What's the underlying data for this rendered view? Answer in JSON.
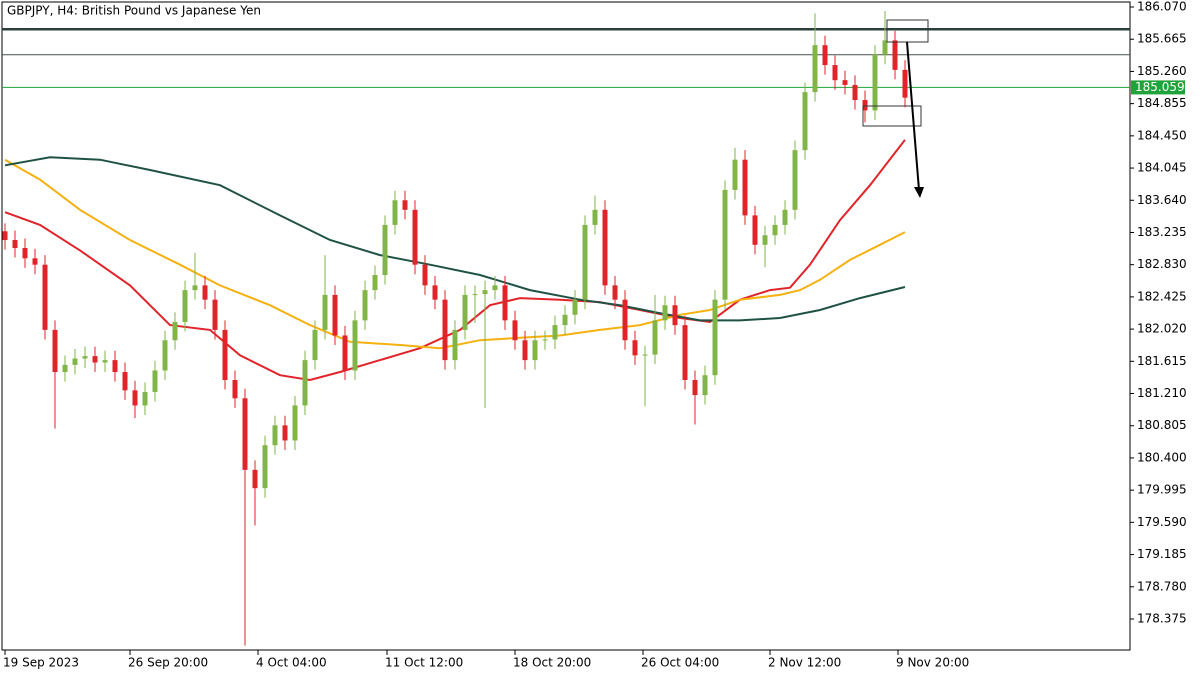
{
  "chart_data": {
    "type": "candlestick",
    "title": "GBPJPY, H4:  British Pound vs Japanese Yen",
    "up_color": "#82b548",
    "down_color": "#e0242a",
    "xlim": [
      -0.5,
      112.5
    ],
    "ylim": [
      177.985,
      186.133
    ],
    "xticks": [
      {
        "value": 0,
        "label": "19 Sep 2023"
      },
      {
        "value": 12.5,
        "label": "26 Sep 20:00"
      },
      {
        "value": 25.3,
        "label": "4 Oct 04:00"
      },
      {
        "value": 38.2,
        "label": "11 Oct 12:00"
      },
      {
        "value": 51,
        "label": "18 Oct 20:00"
      },
      {
        "value": 63.8,
        "label": "26 Oct 04:00"
      },
      {
        "value": 76.5,
        "label": "2 Nov 12:00"
      },
      {
        "value": 89.3,
        "label": "9 Nov 20:00"
      }
    ],
    "yticks": [
      {
        "value": 186.07,
        "label": "186.070"
      },
      185.665,
      {
        "value": 185.26,
        "label": "185.260"
      },
      184.855,
      {
        "value": 184.45,
        "label": "184.450"
      },
      184.045,
      {
        "value": 183.64,
        "label": "183.640"
      },
      183.235,
      {
        "value": 182.83,
        "label": "182.830"
      },
      182.425,
      {
        "value": 182.02,
        "label": "182.020"
      },
      181.615,
      {
        "value": 181.21,
        "label": "181.210"
      },
      180.805,
      {
        "value": 180.4,
        "label": "180.400"
      },
      179.995,
      {
        "value": 179.59,
        "label": "179.590"
      },
      179.185,
      {
        "value": 178.78,
        "label": "178.780"
      },
      178.375
    ],
    "candles": [
      [
        183.25,
        183.35,
        183.02,
        183.14
      ],
      [
        183.14,
        183.26,
        182.92,
        183.04
      ],
      [
        183.04,
        183.16,
        182.79,
        182.91
      ],
      [
        182.91,
        183.03,
        182.71,
        182.83
      ],
      [
        182.83,
        182.95,
        181.89,
        182.01
      ],
      [
        182.01,
        182.13,
        180.77,
        181.48
      ],
      [
        181.48,
        181.69,
        181.36,
        181.57
      ],
      [
        181.57,
        181.77,
        181.45,
        181.65
      ],
      [
        181.65,
        181.8,
        181.53,
        181.68
      ],
      [
        181.68,
        181.8,
        181.48,
        181.6
      ],
      [
        181.6,
        181.75,
        181.48,
        181.63
      ],
      [
        181.63,
        181.75,
        181.36,
        181.48
      ],
      [
        181.48,
        181.6,
        181.13,
        181.25
      ],
      [
        181.25,
        181.37,
        180.9,
        181.06
      ],
      [
        181.06,
        181.35,
        180.94,
        181.23
      ],
      [
        181.23,
        181.62,
        181.11,
        181.5
      ],
      [
        181.5,
        182.0,
        181.38,
        181.88
      ],
      [
        181.88,
        182.23,
        181.76,
        182.11
      ],
      [
        182.11,
        182.63,
        181.99,
        182.51
      ],
      [
        182.51,
        182.98,
        182.39,
        182.57
      ],
      [
        182.57,
        182.69,
        182.27,
        182.39
      ],
      [
        182.39,
        182.51,
        181.89,
        182.01
      ],
      [
        182.01,
        182.13,
        181.26,
        181.38
      ],
      [
        181.38,
        181.5,
        181.03,
        181.15
      ],
      [
        181.15,
        181.27,
        178.04,
        180.25
      ],
      [
        180.25,
        180.37,
        179.55,
        180.02
      ],
      [
        180.02,
        180.68,
        179.9,
        180.56
      ],
      [
        180.56,
        180.93,
        180.44,
        180.81
      ],
      [
        180.81,
        180.93,
        180.5,
        180.62
      ],
      [
        180.62,
        181.18,
        180.5,
        181.06
      ],
      [
        181.06,
        181.75,
        180.94,
        181.63
      ],
      [
        181.63,
        182.13,
        181.51,
        182.01
      ],
      [
        182.01,
        182.95,
        181.89,
        182.45
      ],
      [
        182.45,
        182.57,
        181.82,
        181.94
      ],
      [
        181.94,
        182.06,
        181.38,
        181.5
      ],
      [
        181.5,
        182.25,
        181.38,
        182.13
      ],
      [
        182.13,
        182.63,
        182.01,
        182.51
      ],
      [
        182.51,
        182.82,
        182.39,
        182.7
      ],
      [
        182.7,
        183.45,
        182.58,
        183.33
      ],
      [
        183.33,
        183.76,
        183.21,
        183.64
      ],
      [
        183.64,
        183.76,
        183.4,
        183.52
      ],
      [
        183.52,
        183.64,
        182.71,
        182.83
      ],
      [
        182.83,
        182.95,
        182.45,
        182.57
      ],
      [
        182.57,
        182.69,
        182.27,
        182.39
      ],
      [
        182.39,
        182.51,
        181.51,
        181.63
      ],
      [
        181.63,
        182.13,
        181.51,
        182.01
      ],
      [
        182.01,
        182.57,
        181.89,
        182.45
      ],
      [
        182.45,
        182.57,
        182.1,
        182.46
      ],
      [
        182.46,
        182.63,
        181.03,
        182.51
      ],
      [
        182.51,
        182.69,
        182.39,
        182.57
      ],
      [
        182.57,
        182.69,
        182.01,
        182.13
      ],
      [
        182.13,
        182.25,
        181.76,
        181.88
      ],
      [
        181.88,
        182.0,
        181.51,
        181.63
      ],
      [
        181.63,
        182.0,
        181.51,
        181.88
      ],
      [
        181.88,
        182.0,
        181.76,
        181.89
      ],
      [
        181.89,
        182.19,
        181.77,
        182.07
      ],
      [
        182.07,
        182.32,
        181.95,
        182.2
      ],
      [
        182.2,
        182.51,
        182.08,
        182.39
      ],
      [
        182.39,
        183.45,
        182.27,
        183.33
      ],
      [
        183.33,
        183.7,
        183.21,
        183.52
      ],
      [
        183.52,
        183.64,
        182.45,
        182.57
      ],
      [
        182.57,
        182.69,
        182.27,
        182.39
      ],
      [
        182.39,
        182.51,
        181.76,
        181.88
      ],
      [
        181.88,
        182.0,
        181.57,
        181.69
      ],
      [
        181.69,
        181.81,
        181.05,
        181.7
      ],
      [
        181.7,
        182.45,
        181.58,
        182.13
      ],
      [
        182.13,
        182.44,
        182.01,
        182.32
      ],
      [
        182.32,
        182.44,
        181.95,
        182.07
      ],
      [
        182.07,
        182.19,
        181.26,
        181.38
      ],
      [
        181.38,
        181.5,
        180.82,
        181.19
      ],
      [
        181.19,
        181.56,
        181.07,
        181.44
      ],
      [
        181.44,
        182.51,
        181.32,
        182.39
      ],
      [
        182.39,
        183.89,
        182.27,
        183.77
      ],
      [
        183.77,
        184.3,
        183.65,
        184.15
      ],
      [
        184.15,
        184.27,
        183.33,
        183.45
      ],
      [
        183.45,
        183.57,
        182.96,
        183.08
      ],
      [
        183.08,
        183.32,
        182.8,
        183.2
      ],
      [
        183.2,
        183.45,
        183.08,
        183.33
      ],
      [
        183.33,
        183.64,
        183.21,
        183.52
      ],
      [
        183.52,
        184.39,
        183.4,
        184.27
      ],
      [
        184.27,
        185.12,
        184.15,
        185.0
      ],
      [
        185.0,
        185.99,
        184.88,
        185.59
      ],
      [
        185.59,
        185.71,
        185.22,
        185.34
      ],
      [
        185.34,
        185.46,
        185.03,
        185.15
      ],
      [
        185.15,
        185.27,
        184.97,
        185.09
      ],
      [
        185.09,
        185.21,
        184.78,
        184.9
      ],
      [
        184.9,
        185.02,
        184.62,
        184.77
      ],
      [
        184.77,
        185.59,
        184.65,
        185.47
      ],
      [
        185.47,
        186.02,
        185.35,
        185.65
      ],
      [
        185.65,
        185.77,
        185.16,
        185.28
      ],
      [
        185.28,
        185.4,
        184.81,
        184.93
      ]
    ],
    "series": [
      {
        "color": "#e0242a",
        "x": [
          0,
          3.5,
          7.5,
          12.5,
          16.5,
          20.5,
          23.5,
          27.5,
          30.5,
          33.5,
          37.5,
          41.5,
          45.5,
          48.5,
          51.5,
          55.5,
          59.5,
          63.5,
          67.5,
          70.5,
          73.5,
          76.5,
          78.5,
          80.5,
          83.5,
          86.5,
          90
        ],
        "values": [
          183.49,
          183.33,
          183.01,
          182.57,
          182.07,
          182.01,
          181.69,
          181.44,
          181.38,
          181.48,
          181.63,
          181.78,
          182.01,
          182.32,
          182.41,
          182.39,
          182.36,
          182.26,
          182.16,
          182.11,
          182.39,
          182.51,
          182.54,
          182.83,
          183.39,
          183.83,
          184.4
        ]
      },
      {
        "color": "#f5b10f",
        "x": [
          0,
          3.5,
          7.5,
          12.5,
          17.5,
          21.5,
          26.5,
          30.5,
          34.5,
          39.5,
          43.5,
          47.5,
          51.5,
          55.5,
          59.5,
          63.5,
          67.5,
          70.5,
          73.5,
          77.5,
          79.5,
          81.5,
          84.5,
          87.5,
          90
        ],
        "values": [
          184.15,
          183.9,
          183.52,
          183.14,
          182.83,
          182.57,
          182.32,
          182.07,
          181.86,
          181.82,
          181.78,
          181.88,
          181.91,
          181.94,
          182.01,
          182.07,
          182.2,
          182.26,
          182.39,
          182.45,
          182.51,
          182.64,
          182.89,
          183.08,
          183.24
        ]
      },
      {
        "color": "#1f5245",
        "x": [
          0,
          4.5,
          9.5,
          14.5,
          21.5,
          27.5,
          32.5,
          37.5,
          42.5,
          47.5,
          52.5,
          57.5,
          61.5,
          65.5,
          69.5,
          73.5,
          77.5,
          81.5,
          85.5,
          90
        ],
        "values": [
          184.08,
          184.18,
          184.15,
          184.02,
          183.83,
          183.45,
          183.14,
          182.95,
          182.83,
          182.7,
          182.51,
          182.39,
          182.32,
          182.22,
          182.13,
          182.13,
          182.16,
          182.26,
          182.41,
          182.55
        ]
      }
    ],
    "levels": [
      {
        "value": 185.79,
        "color": "#2b3f3c"
      },
      {
        "value": 185.47,
        "color": "#44524f"
      },
      {
        "value": 185.059,
        "color": "#1fa33a"
      }
    ],
    "price_label": 185.059
  }
}
